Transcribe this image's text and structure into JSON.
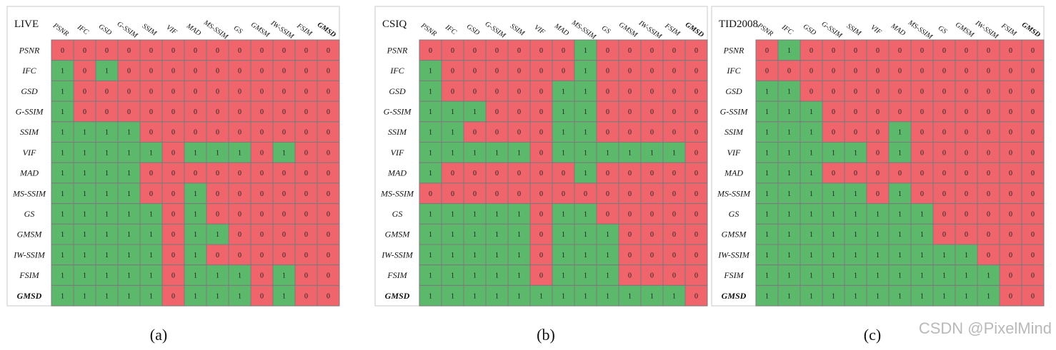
{
  "colors": {
    "one": "#5cb96c",
    "zero": "#f0646b",
    "grid": "#7a7a7a"
  },
  "chart_data": [
    {
      "type": "heatmap",
      "title": "LIVE",
      "caption": "(a)",
      "rows": [
        "PSNR",
        "IFC",
        "GSD",
        "G-SSIM",
        "SSIM",
        "VIF",
        "MAD",
        "MS-SSIM",
        "GS",
        "GMSM",
        "IW-SSIM",
        "FSIM",
        "GMSD"
      ],
      "cols": [
        "PSNR",
        "IFC",
        "GSD",
        "G-SSIM",
        "SSIM",
        "VIF",
        "MAD",
        "MS-SSIM",
        "GS",
        "GMSM",
        "IW-SSIM",
        "FSIM",
        "GMSD"
      ],
      "values": [
        [
          0,
          0,
          0,
          0,
          0,
          0,
          0,
          0,
          0,
          0,
          0,
          0,
          0
        ],
        [
          1,
          0,
          1,
          0,
          0,
          0,
          0,
          0,
          0,
          0,
          0,
          0,
          0
        ],
        [
          1,
          0,
          0,
          0,
          0,
          0,
          0,
          0,
          0,
          0,
          0,
          0,
          0
        ],
        [
          1,
          0,
          0,
          0,
          0,
          0,
          0,
          0,
          0,
          0,
          0,
          0,
          0
        ],
        [
          1,
          1,
          1,
          1,
          0,
          0,
          0,
          0,
          0,
          0,
          0,
          0,
          0
        ],
        [
          1,
          1,
          1,
          1,
          1,
          0,
          1,
          1,
          1,
          0,
          1,
          0,
          0
        ],
        [
          1,
          1,
          1,
          1,
          0,
          0,
          0,
          0,
          0,
          0,
          0,
          0,
          0
        ],
        [
          1,
          1,
          1,
          1,
          0,
          0,
          1,
          0,
          0,
          0,
          0,
          0,
          0
        ],
        [
          1,
          1,
          1,
          1,
          1,
          0,
          1,
          0,
          0,
          0,
          0,
          0,
          0
        ],
        [
          1,
          1,
          1,
          1,
          1,
          0,
          1,
          1,
          0,
          0,
          0,
          0,
          0
        ],
        [
          1,
          1,
          1,
          1,
          1,
          0,
          1,
          0,
          0,
          0,
          0,
          0,
          0
        ],
        [
          1,
          1,
          1,
          1,
          1,
          0,
          1,
          1,
          1,
          0,
          1,
          0,
          0
        ],
        [
          1,
          1,
          1,
          1,
          1,
          0,
          1,
          1,
          1,
          0,
          1,
          0,
          0
        ]
      ]
    },
    {
      "type": "heatmap",
      "title": "CSIQ",
      "caption": "(b)",
      "rows": [
        "PSNR",
        "IFC",
        "GSD",
        "G-SSIM",
        "SSIM",
        "VIF",
        "MAD",
        "MS-SSIM",
        "GS",
        "GMSM",
        "IW-SSIM",
        "FSIM",
        "GMSD"
      ],
      "cols": [
        "PSNR",
        "IFC",
        "GSD",
        "G-SSIM",
        "SSIM",
        "VIF",
        "MAD",
        "MS-SSIM",
        "GS",
        "GMSM",
        "IW-SSIM",
        "FSIM",
        "GMSD"
      ],
      "values": [
        [
          0,
          0,
          0,
          0,
          0,
          0,
          0,
          1,
          0,
          0,
          0,
          0,
          0
        ],
        [
          1,
          0,
          0,
          0,
          0,
          0,
          0,
          1,
          0,
          0,
          0,
          0,
          0
        ],
        [
          1,
          0,
          0,
          0,
          0,
          0,
          1,
          1,
          0,
          0,
          0,
          0,
          0
        ],
        [
          1,
          1,
          1,
          0,
          0,
          0,
          1,
          1,
          0,
          0,
          0,
          0,
          0
        ],
        [
          1,
          1,
          0,
          0,
          0,
          0,
          1,
          1,
          0,
          0,
          0,
          0,
          0
        ],
        [
          1,
          1,
          1,
          1,
          1,
          0,
          1,
          1,
          1,
          1,
          1,
          1,
          0
        ],
        [
          1,
          0,
          0,
          0,
          0,
          0,
          0,
          1,
          0,
          0,
          0,
          0,
          0
        ],
        [
          0,
          0,
          0,
          0,
          0,
          0,
          0,
          0,
          0,
          0,
          0,
          0,
          0
        ],
        [
          1,
          1,
          1,
          1,
          1,
          0,
          1,
          1,
          0,
          0,
          0,
          0,
          0
        ],
        [
          1,
          1,
          1,
          1,
          1,
          0,
          1,
          1,
          1,
          0,
          0,
          0,
          0
        ],
        [
          1,
          1,
          1,
          1,
          1,
          0,
          1,
          1,
          1,
          0,
          0,
          0,
          0
        ],
        [
          1,
          1,
          1,
          1,
          1,
          0,
          1,
          1,
          1,
          0,
          0,
          0,
          0
        ],
        [
          1,
          1,
          1,
          1,
          1,
          1,
          1,
          1,
          1,
          1,
          1,
          1,
          0
        ]
      ]
    },
    {
      "type": "heatmap",
      "title": "TID2008",
      "caption": "(c)",
      "rows": [
        "PSNR",
        "IFC",
        "GSD",
        "G-SSIM",
        "SSIM",
        "VIF",
        "MAD",
        "MS-SSIM",
        "GS",
        "GMSM",
        "IW-SSIM",
        "FSIM",
        "GMSD"
      ],
      "cols": [
        "PSNR",
        "IFC",
        "GSD",
        "G-SSIM",
        "SSIM",
        "VIF",
        "MAD",
        "MS-SSIM",
        "GS",
        "GMSM",
        "IW-SSIM",
        "FSIM",
        "GMSD"
      ],
      "values": [
        [
          0,
          1,
          0,
          0,
          0,
          0,
          0,
          0,
          0,
          0,
          0,
          0,
          0
        ],
        [
          0,
          0,
          0,
          0,
          0,
          0,
          0,
          0,
          0,
          0,
          0,
          0,
          0
        ],
        [
          1,
          1,
          0,
          0,
          0,
          0,
          0,
          0,
          0,
          0,
          0,
          0,
          0
        ],
        [
          1,
          1,
          1,
          0,
          0,
          0,
          0,
          0,
          0,
          0,
          0,
          0,
          0
        ],
        [
          1,
          1,
          1,
          0,
          0,
          0,
          1,
          0,
          0,
          0,
          0,
          0,
          0
        ],
        [
          1,
          1,
          1,
          1,
          1,
          0,
          1,
          0,
          0,
          0,
          0,
          0,
          0
        ],
        [
          1,
          1,
          1,
          0,
          0,
          0,
          0,
          0,
          0,
          0,
          0,
          0,
          0
        ],
        [
          1,
          1,
          1,
          1,
          1,
          0,
          1,
          0,
          0,
          0,
          0,
          0,
          0
        ],
        [
          1,
          1,
          1,
          1,
          1,
          1,
          1,
          1,
          0,
          0,
          0,
          0,
          0
        ],
        [
          1,
          1,
          1,
          1,
          1,
          1,
          1,
          1,
          0,
          0,
          0,
          0,
          0
        ],
        [
          1,
          1,
          1,
          1,
          1,
          1,
          1,
          1,
          1,
          1,
          0,
          0,
          0
        ],
        [
          1,
          1,
          1,
          1,
          1,
          1,
          1,
          1,
          1,
          1,
          1,
          0,
          0
        ],
        [
          1,
          1,
          1,
          1,
          1,
          1,
          1,
          1,
          1,
          1,
          1,
          0,
          0
        ]
      ]
    }
  ],
  "watermark": "CSDN @PixelMind"
}
